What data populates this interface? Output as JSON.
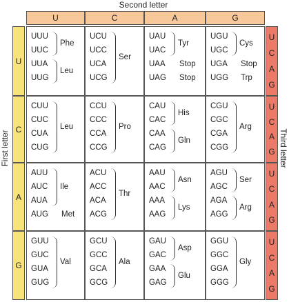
{
  "headers": {
    "top": "Second letter",
    "left": "First letter",
    "right": "Third letter"
  },
  "second_letters": [
    "U",
    "C",
    "A",
    "G"
  ],
  "first_letters": [
    "U",
    "C",
    "A",
    "G"
  ],
  "third_letters": [
    "U",
    "C",
    "A",
    "G"
  ],
  "codon_table": [
    {
      "first": "U",
      "cells": [
        {
          "codons": [
            "UUU",
            "UUC",
            "UUA",
            "UUG"
          ],
          "groups": [
            {
              "label": "Phe",
              "from": 0,
              "to": 1
            },
            {
              "label": "Leu",
              "from": 2,
              "to": 3
            }
          ]
        },
        {
          "codons": [
            "UCU",
            "UCC",
            "UCA",
            "UCG"
          ],
          "groups": [
            {
              "label": "Ser",
              "from": 0,
              "to": 3
            }
          ]
        },
        {
          "codons": [
            "UAU",
            "UAC",
            "UAA",
            "UAG"
          ],
          "groups": [
            {
              "label": "Tyr",
              "from": 0,
              "to": 1
            },
            {
              "label": "Stop",
              "from": 2,
              "to": 2
            },
            {
              "label": "Stop",
              "from": 3,
              "to": 3
            }
          ]
        },
        {
          "codons": [
            "UGU",
            "UGC",
            "UGA",
            "UGG"
          ],
          "groups": [
            {
              "label": "Cys",
              "from": 0,
              "to": 1
            },
            {
              "label": "Stop",
              "from": 2,
              "to": 2
            },
            {
              "label": "Trp",
              "from": 3,
              "to": 3
            }
          ]
        }
      ]
    },
    {
      "first": "C",
      "cells": [
        {
          "codons": [
            "CUU",
            "CUC",
            "CUA",
            "CUG"
          ],
          "groups": [
            {
              "label": "Leu",
              "from": 0,
              "to": 3
            }
          ]
        },
        {
          "codons": [
            "CCU",
            "CCC",
            "CCA",
            "CCG"
          ],
          "groups": [
            {
              "label": "Pro",
              "from": 0,
              "to": 3
            }
          ]
        },
        {
          "codons": [
            "CAU",
            "CAC",
            "CAA",
            "CAG"
          ],
          "groups": [
            {
              "label": "His",
              "from": 0,
              "to": 1
            },
            {
              "label": "Gln",
              "from": 2,
              "to": 3
            }
          ]
        },
        {
          "codons": [
            "CGU",
            "CGC",
            "CGA",
            "CGG"
          ],
          "groups": [
            {
              "label": "Arg",
              "from": 0,
              "to": 3
            }
          ]
        }
      ]
    },
    {
      "first": "A",
      "cells": [
        {
          "codons": [
            "AUU",
            "AUC",
            "AUA",
            "AUG"
          ],
          "groups": [
            {
              "label": "Ile",
              "from": 0,
              "to": 2
            },
            {
              "label": "Met",
              "from": 3,
              "to": 3
            }
          ]
        },
        {
          "codons": [
            "ACU",
            "ACC",
            "ACA",
            "ACG"
          ],
          "groups": [
            {
              "label": "Thr",
              "from": 0,
              "to": 3
            }
          ]
        },
        {
          "codons": [
            "AAU",
            "AAC",
            "AAA",
            "AAG"
          ],
          "groups": [
            {
              "label": "Asn",
              "from": 0,
              "to": 1
            },
            {
              "label": "Lys",
              "from": 2,
              "to": 3
            }
          ]
        },
        {
          "codons": [
            "AGU",
            "AGC",
            "AGA",
            "AGG"
          ],
          "groups": [
            {
              "label": "Ser",
              "from": 0,
              "to": 1
            },
            {
              "label": "Arg",
              "from": 2,
              "to": 3
            }
          ]
        }
      ]
    },
    {
      "first": "G",
      "cells": [
        {
          "codons": [
            "GUU",
            "GUC",
            "GUA",
            "GUG"
          ],
          "groups": [
            {
              "label": "Val",
              "from": 0,
              "to": 3
            }
          ]
        },
        {
          "codons": [
            "GCU",
            "GCC",
            "GCA",
            "GCG"
          ],
          "groups": [
            {
              "label": "Ala",
              "from": 0,
              "to": 3
            }
          ]
        },
        {
          "codons": [
            "GAU",
            "GAC",
            "GAA",
            "GAG"
          ],
          "groups": [
            {
              "label": "Asp",
              "from": 0,
              "to": 1
            },
            {
              "label": "Glu",
              "from": 2,
              "to": 3
            }
          ]
        },
        {
          "codons": [
            "GGU",
            "GGC",
            "GGA",
            "GGG"
          ],
          "groups": [
            {
              "label": "Gly",
              "from": 0,
              "to": 3
            }
          ]
        }
      ]
    }
  ],
  "colors": {
    "second_letter_bg": "#f7c89a",
    "first_letter_bg": "#f8e27a",
    "third_letter_bg": "#ec7a68"
  }
}
